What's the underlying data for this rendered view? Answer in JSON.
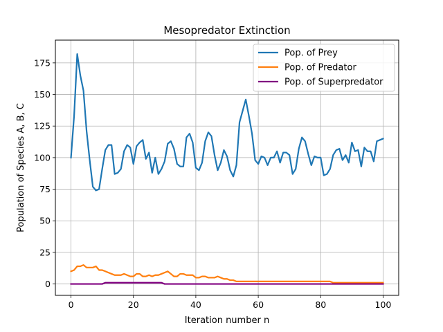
{
  "chart_data": {
    "type": "line",
    "title": "Mesopredator Extinction",
    "xlabel": "Iteration number n",
    "ylabel": "Population of Species A, B, C",
    "xlim": [
      -5,
      105
    ],
    "ylim": [
      -9,
      193
    ],
    "xticks": [
      0,
      20,
      40,
      60,
      80,
      100
    ],
    "yticks": [
      0,
      25,
      50,
      75,
      100,
      125,
      150,
      175
    ],
    "grid": true,
    "legend_position": "top-right",
    "series": [
      {
        "name": "Pop. of Prey",
        "color": "#1f77b4",
        "x": [
          0,
          1,
          2,
          3,
          4,
          5,
          6,
          7,
          8,
          9,
          10,
          11,
          12,
          13,
          14,
          15,
          16,
          17,
          18,
          19,
          20,
          21,
          22,
          23,
          24,
          25,
          26,
          27,
          28,
          29,
          30,
          31,
          32,
          33,
          34,
          35,
          36,
          37,
          38,
          39,
          40,
          41,
          42,
          43,
          44,
          45,
          46,
          47,
          48,
          49,
          50,
          51,
          52,
          53,
          54,
          55,
          56,
          57,
          58,
          59,
          60,
          61,
          62,
          63,
          64,
          65,
          66,
          67,
          68,
          69,
          70,
          71,
          72,
          73,
          74,
          75,
          76,
          77,
          78,
          79,
          80,
          81,
          82,
          83,
          84,
          85,
          86,
          87,
          88,
          89,
          90,
          91,
          92,
          93,
          94,
          95,
          96,
          97,
          98,
          99,
          100
        ],
        "values": [
          100,
          133,
          182,
          165,
          153,
          121,
          98,
          77,
          74,
          75,
          91,
          106,
          110,
          110,
          87,
          88,
          91,
          105,
          110,
          108,
          95,
          109,
          112,
          114,
          99,
          104,
          88,
          100,
          87,
          91,
          97,
          111,
          113,
          107,
          95,
          93,
          93,
          116,
          119,
          112,
          92,
          90,
          96,
          113,
          120,
          117,
          102,
          90,
          96,
          106,
          101,
          90,
          85,
          94,
          128,
          137,
          146,
          133,
          119,
          98,
          95,
          101,
          100,
          94,
          100,
          100,
          105,
          96,
          104,
          104,
          102,
          87,
          91,
          107,
          116,
          113,
          103,
          94,
          101,
          100,
          100,
          86,
          87,
          91,
          102,
          106,
          107,
          98,
          102,
          96,
          112,
          105,
          106,
          93,
          108,
          105,
          105,
          97,
          113,
          114,
          115
        ]
      },
      {
        "name": "Pop. of Predator",
        "color": "#ff7f0e",
        "x": [
          0,
          1,
          2,
          3,
          4,
          5,
          6,
          7,
          8,
          9,
          10,
          11,
          12,
          13,
          14,
          15,
          16,
          17,
          18,
          19,
          20,
          21,
          22,
          23,
          24,
          25,
          26,
          27,
          28,
          29,
          30,
          31,
          32,
          33,
          34,
          35,
          36,
          37,
          38,
          39,
          40,
          41,
          42,
          43,
          44,
          45,
          46,
          47,
          48,
          49,
          50,
          51,
          52,
          53,
          54,
          55,
          56,
          57,
          58,
          59,
          60,
          61,
          62,
          63,
          64,
          65,
          66,
          67,
          68,
          69,
          70,
          71,
          72,
          73,
          74,
          75,
          76,
          77,
          78,
          79,
          80,
          81,
          82,
          83,
          84,
          85,
          86,
          87,
          88,
          89,
          90,
          91,
          92,
          93,
          94,
          95,
          96,
          97,
          98,
          99,
          100
        ],
        "values": [
          10,
          11,
          14,
          14,
          15,
          13,
          13,
          13,
          14,
          11,
          11,
          10,
          9,
          8,
          7,
          7,
          7,
          8,
          7,
          6,
          6,
          8,
          8,
          6,
          6,
          7,
          6,
          7,
          7,
          8,
          9,
          10,
          8,
          6,
          6,
          8,
          8,
          7,
          7,
          7,
          5,
          5,
          6,
          6,
          5,
          5,
          5,
          6,
          5,
          4,
          4,
          3,
          3,
          2,
          2,
          2,
          2,
          2,
          2,
          2,
          2,
          2,
          2,
          2,
          2,
          2,
          2,
          2,
          2,
          2,
          2,
          2,
          2,
          2,
          2,
          2,
          2,
          2,
          2,
          2,
          2,
          2,
          2,
          2,
          1,
          1,
          1,
          1,
          1,
          1,
          1,
          1,
          1,
          1,
          1,
          1,
          1,
          1,
          1,
          1,
          1
        ]
      },
      {
        "name": "Pop. of Superpredator",
        "color": "#800080",
        "x": [
          0,
          10,
          11,
          12,
          13,
          14,
          15,
          16,
          17,
          18,
          19,
          20,
          21,
          22,
          23,
          24,
          25,
          26,
          27,
          28,
          29,
          30,
          100
        ],
        "values": [
          0,
          0,
          1,
          1,
          1,
          1,
          1,
          1,
          1,
          1,
          1,
          1,
          1,
          1,
          1,
          1,
          1,
          1,
          1,
          1,
          1,
          0,
          0
        ]
      }
    ]
  }
}
